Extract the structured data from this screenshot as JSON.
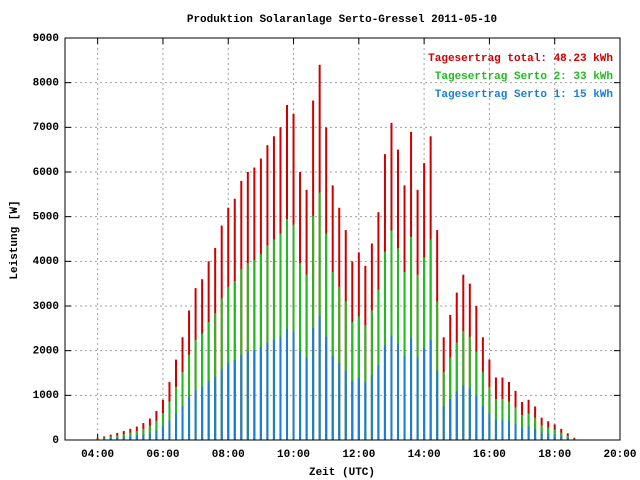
{
  "chart_data": {
    "type": "impulse",
    "title": "Produktion Solaranlage Serto-Gressel 2011-05-10",
    "xlabel": "Zeit (UTC)",
    "ylabel": "Leistung [W]",
    "xlim": [
      3,
      20
    ],
    "ylim": [
      0,
      9000
    ],
    "xticks": [
      {
        "value": 4,
        "label": "04:00"
      },
      {
        "value": 6,
        "label": "06:00"
      },
      {
        "value": 8,
        "label": "08:00"
      },
      {
        "value": 10,
        "label": "10:00"
      },
      {
        "value": 12,
        "label": "12:00"
      },
      {
        "value": 14,
        "label": "14:00"
      },
      {
        "value": 16,
        "label": "16:00"
      },
      {
        "value": 18,
        "label": "18:00"
      },
      {
        "value": 20,
        "label": "20:00"
      }
    ],
    "yticks": [
      0,
      1000,
      2000,
      3000,
      4000,
      5000,
      6000,
      7000,
      8000,
      9000
    ],
    "grid": true,
    "legend": "top-right",
    "x": [
      4,
      4.2,
      4.4,
      4.6,
      4.8,
      5,
      5.2,
      5.4,
      5.6,
      5.8,
      6,
      6.2,
      6.4,
      6.6,
      6.8,
      7,
      7.2,
      7.4,
      7.6,
      7.8,
      8,
      8.2,
      8.4,
      8.6,
      8.8,
      9,
      9.2,
      9.4,
      9.6,
      9.8,
      10,
      10.2,
      10.4,
      10.6,
      10.8,
      11,
      11.2,
      11.4,
      11.6,
      11.8,
      12,
      12.2,
      12.4,
      12.6,
      12.8,
      13,
      13.2,
      13.4,
      13.6,
      13.8,
      14,
      14.2,
      14.4,
      14.6,
      14.8,
      15,
      15.2,
      15.4,
      15.6,
      15.8,
      16,
      16.2,
      16.4,
      16.6,
      16.8,
      17,
      17.2,
      17.4,
      17.6,
      17.8,
      18,
      18.2,
      18.4,
      18.6
    ],
    "series": [
      {
        "name": "Tagesertrag total: 48.23 kWh",
        "color": "#cc0000",
        "values": [
          50,
          80,
          120,
          160,
          200,
          250,
          300,
          380,
          480,
          650,
          900,
          1300,
          1800,
          2300,
          2900,
          3400,
          3600,
          4000,
          4300,
          4800,
          5200,
          5400,
          5800,
          6000,
          6100,
          6300,
          6600,
          6800,
          7000,
          7500,
          7300,
          6000,
          5600,
          7600,
          8400,
          7000,
          5700,
          5200,
          4700,
          4000,
          4200,
          3900,
          4400,
          5100,
          6400,
          7100,
          6500,
          5700,
          6900,
          5600,
          6200,
          6800,
          4700,
          2300,
          2800,
          3300,
          3700,
          3500,
          3000,
          2300,
          1800,
          1400,
          1400,
          1300,
          1100,
          850,
          900,
          750,
          500,
          420,
          350,
          250,
          150,
          50
        ]
      },
      {
        "name": "Tagesertrag Serto 2: 33 kWh",
        "color": "#22bb22",
        "values": [
          30,
          50,
          80,
          100,
          130,
          165,
          200,
          250,
          320,
          430,
          600,
          860,
          1190,
          1520,
          1910,
          2240,
          2380,
          2640,
          2840,
          3170,
          3430,
          3560,
          3830,
          3960,
          4030,
          4160,
          4360,
          4490,
          4620,
          4950,
          4820,
          3960,
          3700,
          5020,
          5540,
          4620,
          3760,
          3430,
          3100,
          2640,
          2770,
          2570,
          2900,
          3370,
          4220,
          4690,
          4290,
          3760,
          4550,
          3700,
          4090,
          4490,
          3100,
          1520,
          1850,
          2180,
          2440,
          2310,
          1980,
          1520,
          1190,
          920,
          920,
          860,
          730,
          560,
          590,
          500,
          330,
          280,
          230,
          165,
          100,
          30
        ]
      },
      {
        "name": "Tagesertrag Serto 1: 15 kWh",
        "color": "#1a7fd4",
        "values": [
          15,
          25,
          40,
          50,
          65,
          80,
          100,
          125,
          160,
          210,
          300,
          430,
          600,
          760,
          960,
          1120,
          1190,
          1320,
          1420,
          1580,
          1720,
          1780,
          1910,
          1980,
          2010,
          2080,
          2180,
          2240,
          2310,
          2480,
          2410,
          1980,
          1850,
          2510,
          2770,
          2310,
          1880,
          1720,
          1550,
          1320,
          1390,
          1290,
          1450,
          1680,
          2110,
          2340,
          2150,
          1880,
          2280,
          1850,
          2050,
          2240,
          1550,
          760,
          920,
          1090,
          1220,
          1160,
          990,
          760,
          590,
          460,
          460,
          430,
          360,
          280,
          300,
          250,
          165,
          140,
          115,
          80,
          50,
          15
        ]
      }
    ]
  }
}
